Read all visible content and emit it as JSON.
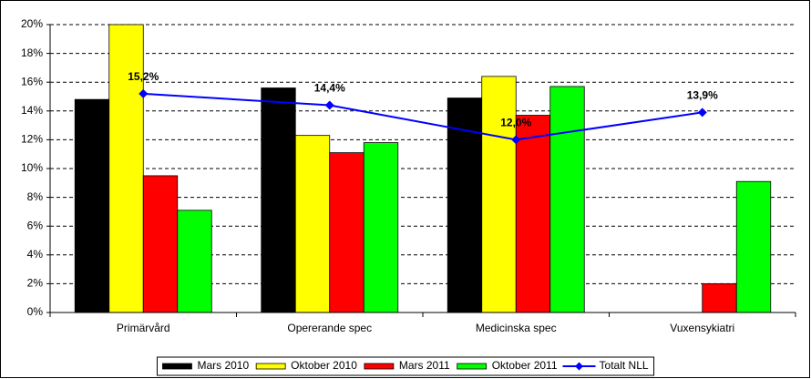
{
  "chart_data": {
    "type": "bar",
    "categories": [
      "Primärvård",
      "Opererande spec",
      "Medicinska spec",
      "Vuxensykiatri"
    ],
    "series": [
      {
        "name": "Mars 2010",
        "color": "#000000",
        "values": [
          14.8,
          15.6,
          14.9,
          null
        ]
      },
      {
        "name": "Oktober 2010",
        "color": "#ffff00",
        "values": [
          20.0,
          12.3,
          16.4,
          null
        ]
      },
      {
        "name": "Mars 2011",
        "color": "#ff0000",
        "values": [
          9.5,
          11.1,
          13.7,
          2.0
        ]
      },
      {
        "name": "Oktober 2011",
        "color": "#00ff00",
        "values": [
          7.1,
          11.8,
          15.7,
          9.1
        ]
      },
      {
        "name": "Totalt NLL",
        "color": "#0000ff",
        "type": "line",
        "values": [
          15.2,
          14.4,
          12.0,
          13.9
        ],
        "value_labels": [
          "15,2%",
          "14,4%",
          "12,0%",
          "13,9%"
        ]
      }
    ],
    "ylim": [
      0,
      20
    ],
    "yticks": [
      {
        "value": 0,
        "label": "0%"
      },
      {
        "value": 2,
        "label": "2%"
      },
      {
        "value": 4,
        "label": "4%"
      },
      {
        "value": 6,
        "label": "6%"
      },
      {
        "value": 8,
        "label": "8%"
      },
      {
        "value": 10,
        "label": "10%"
      },
      {
        "value": 12,
        "label": "12%"
      },
      {
        "value": 14,
        "label": "14%"
      },
      {
        "value": 16,
        "label": "16%"
      },
      {
        "value": 18,
        "label": "18%"
      },
      {
        "value": 20,
        "label": "20%"
      }
    ],
    "grid": true,
    "legend": "bottom"
  }
}
